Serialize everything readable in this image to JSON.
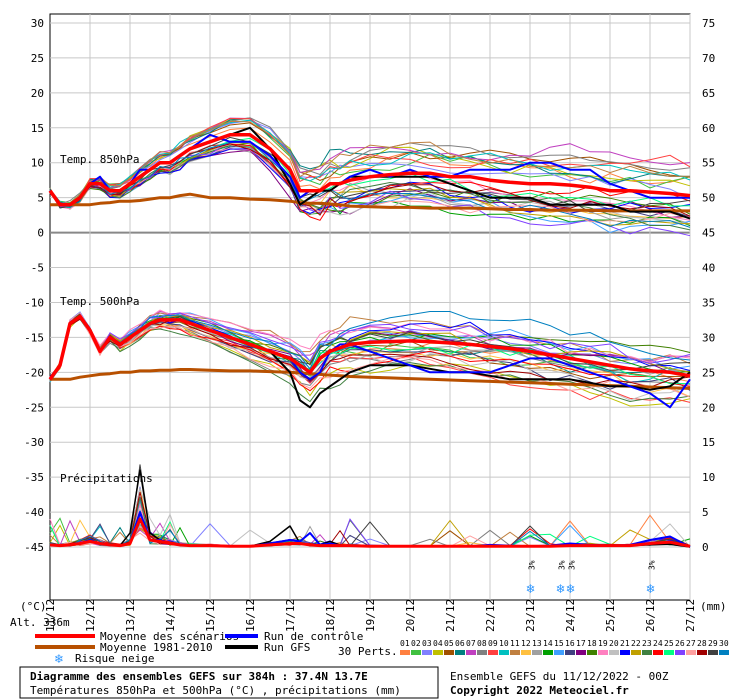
{
  "chart_data": {
    "type": "line",
    "title": "Diagramme des ensembles GEFS sur 384h : 37.4N 13.7E",
    "subtitle": "Températures 850hPa et 500hPa (°C) , précipitations (mm)",
    "run_info": "Ensemble GEFS du 11/12/2022 - 00Z",
    "copyright": "Copyright 2022 Meteociel.fr",
    "altitude": "Alt. 336m",
    "left_unit": "(°C)",
    "right_unit": "(mm)",
    "left_ticks": [
      "30",
      "25",
      "20",
      "15",
      "10",
      "5",
      "0",
      "-5",
      "-10",
      "-15",
      "-20",
      "-25",
      "-30",
      "-35",
      "-40",
      "-45"
    ],
    "right_ticks": [
      "75",
      "70",
      "65",
      "60",
      "55",
      "50",
      "45",
      "40",
      "35",
      "30",
      "25",
      "20",
      "15",
      "10",
      "5",
      "0"
    ],
    "x_dates": [
      "11/12",
      "12/12",
      "13/12",
      "14/12",
      "15/12",
      "16/12",
      "17/12",
      "18/12",
      "19/12",
      "20/12",
      "21/12",
      "22/12",
      "23/12",
      "24/12",
      "25/12",
      "26/12",
      "27/12"
    ],
    "xlim_hours": [
      0,
      384
    ],
    "ylim_left": [
      -45,
      30
    ],
    "ylim_right": [
      0,
      75
    ],
    "grid": true,
    "labels": {
      "t850": "Temp. 850hPa",
      "t500": "Temp. 500hPa",
      "precip": "Précipitations"
    },
    "legend": {
      "mean": "Moyenne des scénarios",
      "clim": "Moyenne 1981-2010",
      "snow": "Risque neige",
      "control": "Run de contrôle",
      "gfs": "Run GFS",
      "perts": "30 Perts."
    },
    "member_labels": [
      "01",
      "02",
      "03",
      "04",
      "05",
      "06",
      "07",
      "08",
      "09",
      "10",
      "11",
      "12",
      "13",
      "14",
      "15",
      "16",
      "17",
      "18",
      "19",
      "20",
      "21",
      "22",
      "23",
      "24",
      "25",
      "26",
      "27",
      "28",
      "29",
      "30"
    ],
    "member_colors": [
      "#ff8040",
      "#40c040",
      "#8080ff",
      "#c0c000",
      "#a05000",
      "#008080",
      "#c040c0",
      "#808080",
      "#ff4040",
      "#00c0c0",
      "#c08040",
      "#ffc040",
      "#a0a0a0",
      "#00a000",
      "#40a0ff",
      "#404080",
      "#800080",
      "#408000",
      "#ff80c0",
      "#c0c0c0",
      "#0000ff",
      "#c0a000",
      "#408040",
      "#ff0000",
      "#00ff80",
      "#8040ff",
      "#ffa0a0",
      "#a00000",
      "#404040",
      "#0080c0"
    ],
    "snow_risk": [
      {
        "x": 289,
        "pct": "3%"
      },
      {
        "x": 307,
        "pct": "3%"
      },
      {
        "x": 313,
        "pct": "3%"
      },
      {
        "x": 361,
        "pct": "3%"
      }
    ],
    "colors": {
      "mean": "#ff0000",
      "clim": "#b85000",
      "control": "#0000ff",
      "gfs": "#000000"
    },
    "x_hours": [
      0,
      6,
      12,
      18,
      24,
      30,
      36,
      42,
      48,
      54,
      60,
      66,
      72,
      78,
      84,
      96,
      108,
      120,
      132,
      144,
      150,
      156,
      162,
      168,
      174,
      180,
      192,
      204,
      216,
      228,
      240,
      252,
      264,
      276,
      288,
      300,
      312,
      324,
      336,
      348,
      360,
      372,
      384
    ],
    "series": [
      {
        "key": "t850_mean",
        "name": "Moyenne des scénarios",
        "values": [
          6,
          4,
          4,
          5,
          7,
          7,
          6,
          6,
          7,
          8,
          9,
          10,
          10,
          11,
          12,
          13,
          14,
          14,
          12,
          9,
          6,
          6,
          6,
          7,
          7,
          7.5,
          8,
          8.3,
          8.5,
          8.5,
          8,
          8,
          7.5,
          7.2,
          7,
          7,
          6.8,
          6.5,
          6,
          6,
          5.8,
          5.6,
          5.3
        ]
      },
      {
        "key": "t850_control",
        "name": "Run de contrôle",
        "values": [
          6,
          4,
          4,
          5,
          7,
          8,
          6,
          6,
          7,
          9,
          9,
          10,
          10,
          11,
          12,
          14,
          13,
          13,
          11,
          8,
          5,
          6,
          6,
          7,
          7,
          8,
          9,
          8,
          9,
          8,
          8,
          9,
          9,
          9,
          10,
          10,
          9,
          9,
          7,
          6,
          5,
          5,
          5
        ]
      },
      {
        "key": "t850_gfs",
        "name": "Run GFS",
        "values": [
          6,
          4,
          4,
          5,
          7,
          7,
          6,
          6,
          7,
          8,
          9,
          10,
          10,
          11,
          12,
          13,
          14,
          15,
          12,
          7,
          4,
          5,
          6,
          6,
          7,
          8,
          8,
          8,
          8,
          8,
          7,
          6,
          5,
          5,
          5,
          4,
          4,
          4,
          4,
          3,
          3,
          3,
          2
        ]
      },
      {
        "key": "t850_clim",
        "name": "Moyenne 1981-2010",
        "values": [
          4,
          4,
          4,
          4,
          4,
          4.2,
          4.3,
          4.5,
          4.5,
          4.6,
          4.8,
          5,
          5,
          5.3,
          5.5,
          5,
          5,
          4.8,
          4.7,
          4.5,
          4.3,
          4.2,
          4.2,
          4.1,
          4,
          3.8,
          3.7,
          3.6,
          3.6,
          3.5,
          3.5,
          3.5,
          3.4,
          3.3,
          3.3,
          3.2,
          3.2,
          3.2,
          3.1,
          3.1,
          3.1,
          3.1,
          3.1
        ]
      },
      {
        "key": "t500_mean",
        "name": "Moyenne des scénarios",
        "values": [
          -21,
          -19,
          -13,
          -12,
          -14,
          -17,
          -15,
          -16,
          -15,
          -14,
          -13,
          -12.5,
          -12.5,
          -12.5,
          -13,
          -14,
          -15,
          -16,
          -17,
          -18,
          -19,
          -20,
          -18,
          -17,
          -16.5,
          -16,
          -15.7,
          -15.6,
          -15.5,
          -15.6,
          -15.8,
          -16,
          -16.3,
          -16.6,
          -17,
          -17.5,
          -18,
          -18.5,
          -19,
          -19.5,
          -19.8,
          -20,
          -20.5
        ]
      },
      {
        "key": "t500_control",
        "name": "Run de contrôle",
        "values": [
          -21,
          -19,
          -13,
          -12,
          -14,
          -17,
          -15,
          -16,
          -15,
          -14,
          -13,
          -12.5,
          -12.5,
          -12.5,
          -13,
          -14,
          -15,
          -16,
          -17,
          -18,
          -20,
          -21,
          -20,
          -17,
          -16,
          -16,
          -17,
          -18,
          -19,
          -20,
          -20,
          -20,
          -20,
          -19,
          -18,
          -18,
          -19,
          -20,
          -21,
          -22,
          -23,
          -25,
          -21
        ]
      },
      {
        "key": "t500_gfs",
        "name": "Run GFS",
        "values": [
          -21,
          -19,
          -13,
          -12,
          -14,
          -17,
          -15,
          -16,
          -15,
          -14,
          -13,
          -12.5,
          -12.5,
          -12.5,
          -13,
          -14,
          -15,
          -16,
          -17,
          -20,
          -24,
          -25,
          -23,
          -22,
          -21,
          -20,
          -19,
          -19,
          -19,
          -19.5,
          -20,
          -20,
          -20.5,
          -21,
          -21,
          -21,
          -21,
          -21.5,
          -22,
          -22,
          -22.5,
          -22,
          -20
        ]
      },
      {
        "key": "t500_clim",
        "name": "Moyenne 1981-2010",
        "values": [
          -21,
          -21,
          -21,
          -20.7,
          -20.5,
          -20.3,
          -20.2,
          -20,
          -20,
          -19.8,
          -19.8,
          -19.7,
          -19.7,
          -19.6,
          -19.6,
          -19.7,
          -19.8,
          -19.8,
          -19.9,
          -20,
          -20.1,
          -20.2,
          -20.3,
          -20.4,
          -20.5,
          -20.6,
          -20.7,
          -20.8,
          -20.9,
          -21,
          -21.1,
          -21.2,
          -21.3,
          -21.4,
          -21.5,
          -21.6,
          -21.7,
          -21.8,
          -21.9,
          -22,
          -22.1,
          -22.2,
          -22.3
        ]
      },
      {
        "key": "precip_mean",
        "name": "Moyenne des scénarios",
        "values": [
          0.3,
          0.2,
          0.3,
          0.5,
          0.8,
          0.5,
          0.3,
          0.2,
          0.5,
          4,
          1,
          0.8,
          0.5,
          0.3,
          0.2,
          0.2,
          0.1,
          0.1,
          0.3,
          0.5,
          0.5,
          0.3,
          0.2,
          0.2,
          0.2,
          0.2,
          0.1,
          0.1,
          0.1,
          0.1,
          0.1,
          0.1,
          0.1,
          0.1,
          0.1,
          0.1,
          0.2,
          0.2,
          0.2,
          0.2,
          0.5,
          0.7,
          0.1
        ]
      },
      {
        "key": "precip_control",
        "name": "Run de contrôle",
        "values": [
          0.3,
          0.2,
          0.3,
          0.5,
          1,
          0.5,
          0.3,
          0.2,
          0.5,
          5,
          1,
          1,
          0.5,
          0.3,
          0.2,
          0.2,
          0.1,
          0.1,
          0.5,
          1,
          0.8,
          2,
          0.3,
          0.5,
          0.2,
          0.2,
          0.2,
          0.1,
          0.1,
          0.1,
          0.1,
          0.1,
          0.3,
          0.2,
          0.1,
          0.2,
          0.5,
          0.3,
          0.2,
          0.3,
          1,
          1.5,
          0
        ]
      },
      {
        "key": "precip_gfs",
        "name": "Run GFS",
        "values": [
          0.3,
          0.2,
          0.3,
          0.5,
          1,
          0.5,
          0.3,
          0.2,
          2,
          11,
          2,
          1,
          0.5,
          0.3,
          0.2,
          0.2,
          0.1,
          0.1,
          0.8,
          3,
          0.5,
          0.3,
          0.3,
          0.8,
          0.3,
          0.2,
          0.1,
          0.1,
          0.1,
          0.1,
          0.1,
          0.1,
          0.1,
          0.1,
          0.1,
          0.1,
          0.1,
          0.2,
          0.1,
          0.2,
          0.3,
          0.4,
          0
        ]
      }
    ]
  }
}
